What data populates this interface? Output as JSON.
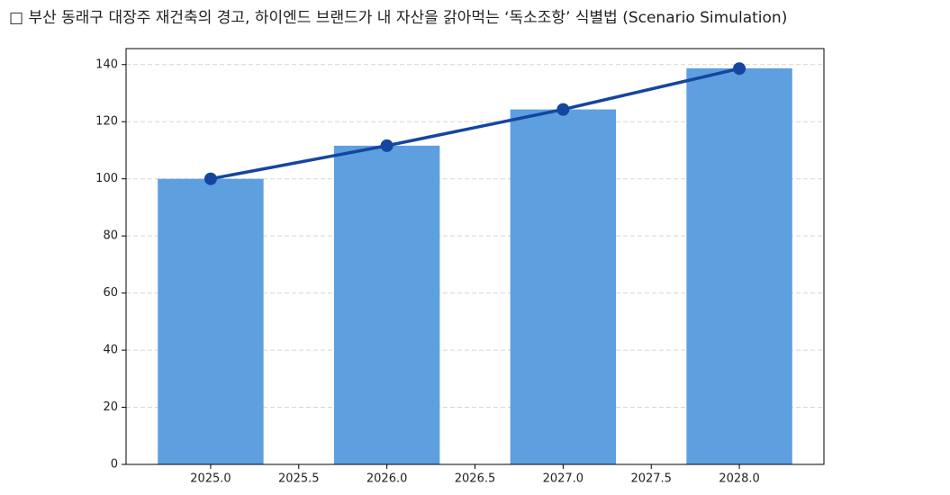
{
  "chart_data": {
    "type": "bar-line",
    "title": "□ 부산 동래구 대장주 재건축의 경고, 하이엔드 브랜드가 내 자산을 갉아먹는 ‘독소조항’ 식별법 (Scenario Simulation)",
    "x": [
      2025,
      2026,
      2027,
      2028
    ],
    "series": [
      {
        "type": "bar",
        "color": "#5e9fdf",
        "values": [
          100,
          111.6,
          124.3,
          138.7
        ]
      },
      {
        "type": "line",
        "color": "#1446a0",
        "values": [
          100,
          111.6,
          124.3,
          138.6
        ]
      }
    ],
    "xlim": [
      2024.52,
      2028.48
    ],
    "xticks": [
      {
        "value": 2025,
        "label": "2025.0"
      },
      {
        "value": 2025.5,
        "label": "2025.5"
      },
      {
        "value": 2026,
        "label": "2026.0"
      },
      {
        "value": 2026.5,
        "label": "2026.5"
      },
      {
        "value": 2027,
        "label": "2027.0"
      },
      {
        "value": 2027.5,
        "label": "2027.5"
      },
      {
        "value": 2028,
        "label": "2028.0"
      }
    ],
    "ylim": [
      0,
      145.6
    ],
    "yticks": [
      0,
      20,
      40,
      60,
      80,
      100,
      120,
      140
    ],
    "grid": "y"
  }
}
